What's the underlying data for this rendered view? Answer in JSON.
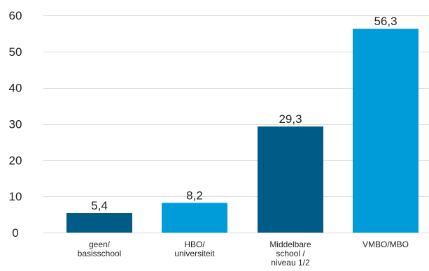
{
  "chart_data": {
    "type": "bar",
    "title": "",
    "xlabel": "",
    "ylabel": "",
    "ylim": [
      0,
      60
    ],
    "yticks": [
      0,
      10,
      20,
      30,
      40,
      50,
      60
    ],
    "ytick_labels": [
      "0",
      "10",
      "20",
      "30",
      "40",
      "50",
      "60"
    ],
    "grid": true,
    "categories": [
      [
        "geen/",
        "basisschool"
      ],
      [
        "HBO/",
        "universiteit"
      ],
      [
        "Middelbare",
        "school /",
        "niveau 1/2"
      ],
      [
        "VMBO/MBO"
      ]
    ],
    "values": [
      5.4,
      8.2,
      29.3,
      56.3
    ],
    "value_labels": [
      "5,4",
      "8,2",
      "29,3",
      "56,3"
    ],
    "bar_colors": [
      "#005c87",
      "#009bd9",
      "#005c87",
      "#009bd9"
    ]
  }
}
